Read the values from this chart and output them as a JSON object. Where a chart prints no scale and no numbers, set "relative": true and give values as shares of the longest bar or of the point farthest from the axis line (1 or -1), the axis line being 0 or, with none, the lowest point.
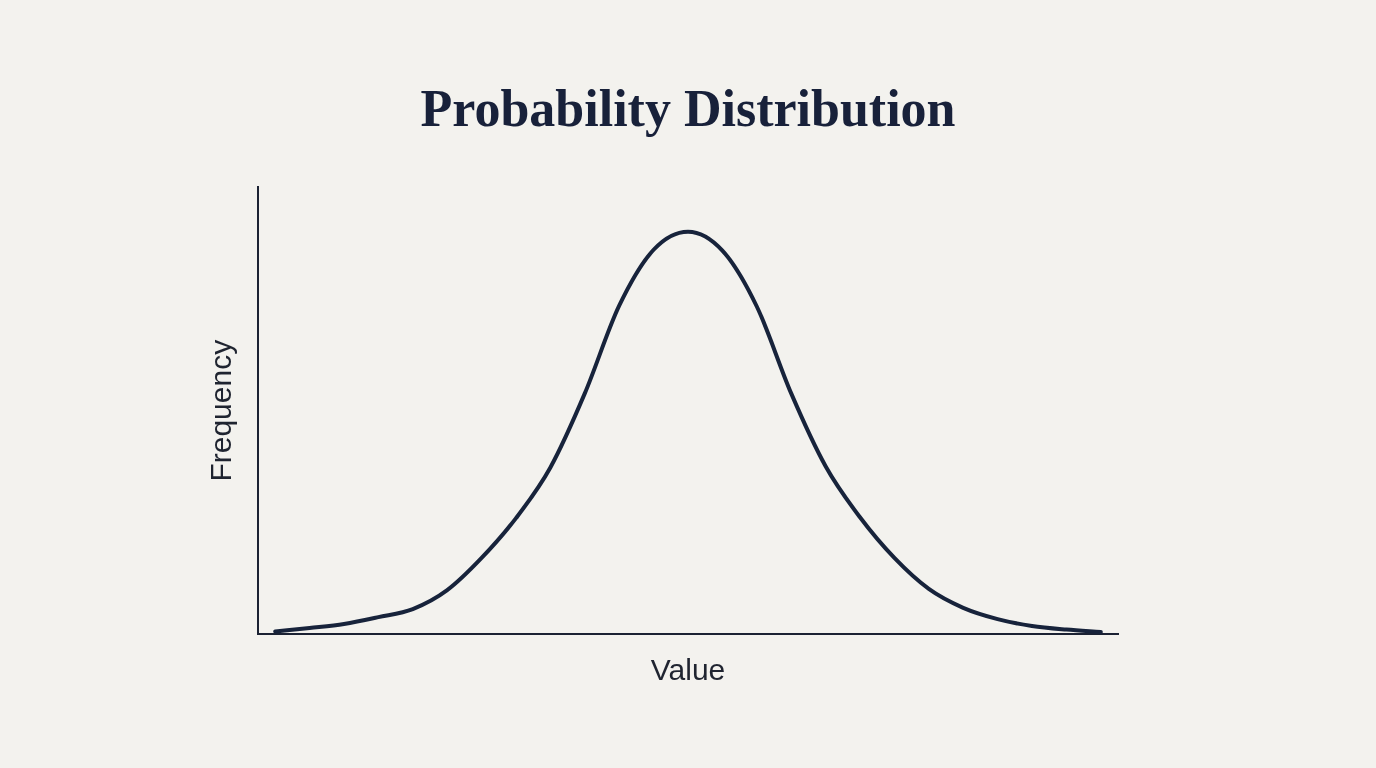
{
  "chart_data": {
    "type": "line",
    "title": "Probability Distribution",
    "xlabel": "Value",
    "ylabel": "Frequency",
    "relative": true,
    "categories": [
      null,
      null,
      null,
      null,
      null,
      null,
      null,
      null,
      null,
      null,
      null,
      null,
      null,
      null,
      null,
      null,
      null,
      null,
      null,
      null,
      null,
      null,
      null,
      null,
      null
    ],
    "values": [
      0.006,
      0.015,
      0.025,
      0.042,
      0.062,
      0.109,
      0.189,
      0.288,
      0.414,
      0.598,
      0.816,
      0.955,
      1,
      0.953,
      0.814,
      0.598,
      0.417,
      0.29,
      0.189,
      0.112,
      0.065,
      0.037,
      0.02,
      0.011,
      0.005
    ],
    "color": "#17233b",
    "tick_labels": false,
    "marker": "none",
    "line_style": "solid"
  }
}
